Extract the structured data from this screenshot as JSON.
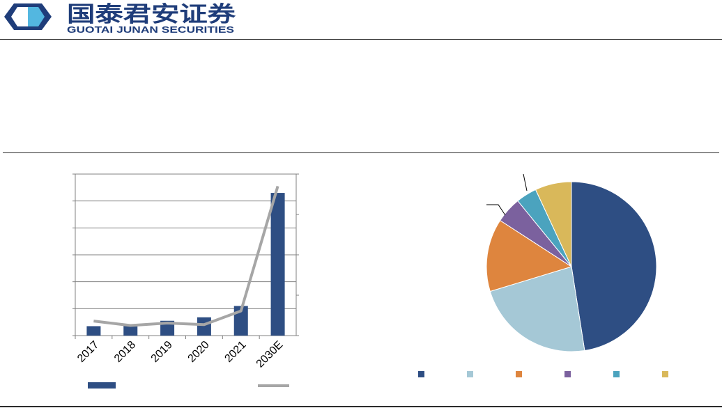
{
  "header": {
    "logo_cn": "国泰君安证券",
    "logo_en": "GUOTAI JUNAN SECURITIES"
  },
  "colors": {
    "bar": "#2E4E83",
    "line": "#A6A6A6",
    "grid": "#808080",
    "pie": [
      "#2E4E83",
      "#A5C8D6",
      "#DE853E",
      "#7B619E",
      "#4BA3BE",
      "#D9B85A"
    ]
  },
  "chart_data": [
    {
      "type": "bar",
      "categories": [
        "2017",
        "2018",
        "2019",
        "2020",
        "2021",
        "2030E"
      ],
      "series": [
        {
          "type": "bar",
          "axis": "left",
          "values": [
            0.35,
            0.42,
            0.55,
            0.68,
            1.1,
            5.3
          ]
        },
        {
          "type": "line",
          "axis": "right",
          "values": [
            0.36,
            0.25,
            0.31,
            0.27,
            0.61,
            3.7
          ]
        }
      ],
      "ylim": [
        0,
        6
      ],
      "y2lim": [
        0,
        4
      ],
      "grid": true,
      "legend": "bottom"
    },
    {
      "type": "pie",
      "values": [
        48,
        23,
        14,
        5,
        4,
        7
      ],
      "legend": "bottom"
    }
  ]
}
